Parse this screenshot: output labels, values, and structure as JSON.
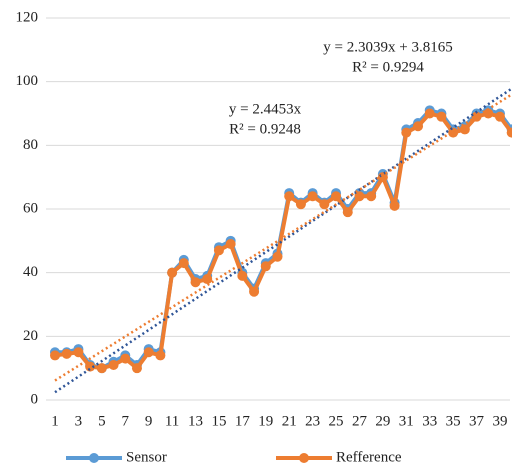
{
  "chart_data": {
    "type": "line",
    "categories": [
      "1",
      null,
      "3",
      null,
      "5",
      null,
      "7",
      null,
      "9",
      null,
      "11",
      null,
      "13",
      null,
      "15",
      null,
      "17",
      null,
      "19",
      null,
      "21",
      null,
      "23",
      null,
      "25",
      null,
      "27",
      null,
      "29",
      null,
      "31",
      null,
      "33",
      null,
      "35",
      null,
      "37",
      null,
      "39",
      null
    ],
    "series": [
      {
        "name": "Sensor",
        "color": "#5b9bd5",
        "values": [
          15,
          15,
          16,
          11,
          10,
          12,
          14,
          11,
          16,
          15,
          40,
          44,
          38,
          39,
          48,
          50,
          40,
          35,
          43,
          46,
          65,
          62,
          65,
          62,
          65,
          60,
          65,
          65,
          71,
          62,
          85,
          87,
          91,
          90,
          85,
          86,
          90,
          91,
          90,
          85
        ]
      },
      {
        "name": "Refference",
        "color": "#ed7d31",
        "values": [
          14,
          14.5,
          15,
          10.5,
          10,
          11,
          13,
          10,
          15,
          14,
          40,
          43,
          37,
          38,
          47,
          49,
          39,
          34,
          42,
          45,
          64,
          61.5,
          64,
          61.5,
          64,
          59,
          64,
          64,
          70,
          61,
          84,
          86,
          90,
          89,
          84,
          85,
          89,
          90,
          89,
          84
        ]
      }
    ],
    "trendlines": [
      {
        "series": 0,
        "color": "#2f5597",
        "slope": 2.4453,
        "intercept": 0,
        "equation": "y = 2.4453x",
        "r2": "R² = 0.9248"
      },
      {
        "series": 1,
        "color": "#ed7d31",
        "slope": 2.3039,
        "intercept": 3.8165,
        "equation": "y = 2.3039x + 3.8165",
        "r2": "R² = 0.9294"
      }
    ],
    "ylim": [
      0,
      120
    ],
    "yticks": [
      0,
      20,
      40,
      60,
      80,
      100,
      120
    ],
    "grid": true,
    "legend": "bottom"
  }
}
